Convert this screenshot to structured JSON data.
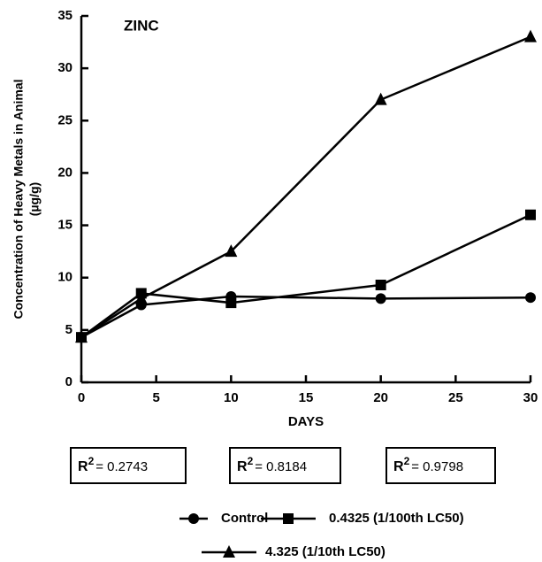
{
  "chart_data": {
    "type": "line",
    "title": "ZINC",
    "xlabel": "DAYS",
    "ylabel": "Concentration of Heavy Metals in Animal",
    "ylabel2": "(µg/g)",
    "x": [
      0,
      4,
      10,
      20,
      30
    ],
    "series": [
      {
        "name": "Control",
        "color": "#000000",
        "marker": "circle",
        "values": [
          4.3,
          7.4,
          8.2,
          8.0,
          8.1
        ]
      },
      {
        "name": "0.4325 (1/100th LC50)",
        "color": "#000000",
        "marker": "square",
        "values": [
          4.3,
          8.5,
          7.6,
          9.3,
          16.0
        ]
      },
      {
        "name": "4.325 (1/10th LC50)",
        "color": "#000000",
        "marker": "triangle",
        "values": [
          4.3,
          8.0,
          12.5,
          27.0,
          33.0
        ]
      }
    ],
    "xlim": [
      0,
      30
    ],
    "xticks": [
      0,
      5,
      10,
      15,
      20,
      25,
      30
    ],
    "ylim": [
      0,
      35
    ],
    "yticks": [
      0,
      5,
      10,
      15,
      20,
      25,
      30,
      35
    ],
    "annotations": [
      {
        "base": "R",
        "sup": "2",
        "text": "= 0.2743"
      },
      {
        "base": "R",
        "sup": "2",
        "text": "= 0.8184"
      },
      {
        "base": "R",
        "sup": "2",
        "text": "= 0.9798"
      }
    ]
  }
}
